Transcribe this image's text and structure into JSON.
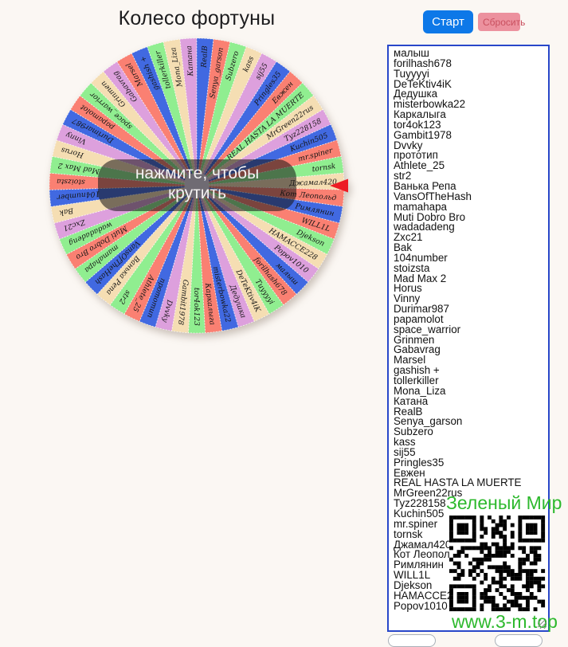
{
  "header": {
    "title": "Колесо фортуны"
  },
  "controls": {
    "start_label": "Старт",
    "reset_label": "Сбросить",
    "start_color": "#0D78E8",
    "reset_color": "#EC919E"
  },
  "wheel": {
    "center_label": "нажмите, чтобы крутить",
    "pointer_color": "#ED1C24",
    "start_angle_deg": 40.9,
    "palette": {
      "salmon": "#FA8072",
      "blue": "#4169E1",
      "green": "#90EE90",
      "wheat": "#F5DEB3",
      "plum": "#DDA0DD"
    },
    "segments": [
      {
        "label": "малыш",
        "color": "blue"
      },
      {
        "label": "forilhash678",
        "color": "salmon"
      },
      {
        "label": "Tuyyyyi",
        "color": "green"
      },
      {
        "label": "DeTeKtiv4iK",
        "color": "wheat"
      },
      {
        "label": "Дедушка",
        "color": "plum"
      },
      {
        "label": "misterbowka22",
        "color": "blue"
      },
      {
        "label": "Каркалыга",
        "color": "salmon"
      },
      {
        "label": "tor4ok123",
        "color": "green"
      },
      {
        "label": "Gambit1978",
        "color": "wheat"
      },
      {
        "label": "Dvvky",
        "color": "plum"
      },
      {
        "label": "прототип",
        "color": "blue"
      },
      {
        "label": "Athlete_25",
        "color": "salmon"
      },
      {
        "label": "str2",
        "color": "green"
      },
      {
        "label": "Ванька Репа",
        "color": "wheat"
      },
      {
        "label": "VansOfTheHash",
        "color": "blue"
      },
      {
        "label": "mamahapa",
        "color": "green"
      },
      {
        "label": "Muti Dobro Bro",
        "color": "salmon"
      },
      {
        "label": "wadadadeng",
        "color": "green"
      },
      {
        "label": "Zxc21",
        "color": "plum"
      },
      {
        "label": "Bak",
        "color": "wheat"
      },
      {
        "label": "104number",
        "color": "blue"
      },
      {
        "label": "stoizsta",
        "color": "salmon"
      },
      {
        "label": "Mad Max 2",
        "color": "green"
      },
      {
        "label": "Horus",
        "color": "wheat"
      },
      {
        "label": "Vinny",
        "color": "plum"
      },
      {
        "label": "Durimar987",
        "color": "blue"
      },
      {
        "label": "papamolot",
        "color": "salmon"
      },
      {
        "label": "space_warrior",
        "color": "green"
      },
      {
        "label": "Grinmen",
        "color": "wheat"
      },
      {
        "label": "Gabavrag",
        "color": "plum"
      },
      {
        "label": "Marsel",
        "color": "salmon"
      },
      {
        "label": "gashish +",
        "color": "blue"
      },
      {
        "label": "tollerkiller",
        "color": "green"
      },
      {
        "label": "Mona_Liza",
        "color": "wheat"
      },
      {
        "label": "Катана",
        "color": "plum"
      },
      {
        "label": "RealB",
        "color": "blue"
      },
      {
        "label": "Senya_garson",
        "color": "salmon"
      },
      {
        "label": "Subzero",
        "color": "green"
      },
      {
        "label": "kass",
        "color": "wheat"
      },
      {
        "label": "sij55",
        "color": "plum"
      },
      {
        "label": "Pringles35",
        "color": "blue"
      },
      {
        "label": "Евжен",
        "color": "salmon"
      },
      {
        "label": "REAL HASTA LA MUERTE",
        "color": "green"
      },
      {
        "label": "MrGreen22rus",
        "color": "wheat"
      },
      {
        "label": "Tyz228158",
        "color": "plum"
      },
      {
        "label": "Kuchin505",
        "color": "blue"
      },
      {
        "label": "mr.spiner",
        "color": "salmon"
      },
      {
        "label": "tornsk",
        "color": "green"
      },
      {
        "label": "Джамал420",
        "color": "wheat"
      },
      {
        "label": "Кот Леопольд",
        "color": "salmon"
      },
      {
        "label": "Римлянин",
        "color": "blue"
      },
      {
        "label": "WILL1L",
        "color": "salmon"
      },
      {
        "label": "Djekson",
        "color": "green"
      },
      {
        "label": "HAMACCE228",
        "color": "wheat"
      },
      {
        "label": "Popov1010",
        "color": "plum"
      }
    ]
  },
  "watermark": {
    "title": "Зеленый Мир",
    "url": "www.3-m.top",
    "color": "#2DB92D"
  }
}
